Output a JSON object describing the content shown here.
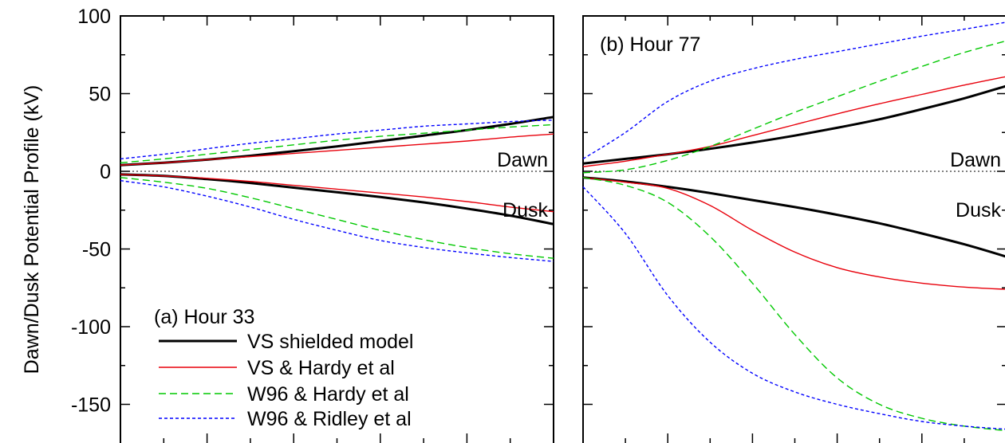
{
  "figure": {
    "ylabel": "Dawn/Dusk Potential Profile (kV)"
  },
  "legend": [
    {
      "label": "VS shielded model",
      "color": "#000000",
      "style": "solid-thick"
    },
    {
      "label": "VS & Hardy et al",
      "color": "#e8000b",
      "style": "solid"
    },
    {
      "label": "W96 & Hardy et al",
      "color": "#00c800",
      "style": "dashed"
    },
    {
      "label": "W96 & Ridley et al",
      "color": "#0000ff",
      "style": "dotted"
    }
  ],
  "chart_data": [
    {
      "type": "line",
      "title": "(a) Hour 33",
      "ylabel": "Dawn/Dusk Potential Profile (kV)",
      "ylim": [
        -165,
        100
      ],
      "xlim": [
        0,
        1
      ],
      "yticks": [
        100,
        50,
        0,
        -50,
        -100,
        -150
      ],
      "annotations": [
        "Dawn",
        "Dusk"
      ],
      "reference_line": {
        "y": 0,
        "style": "dotted"
      },
      "x": [
        0,
        0.1,
        0.2,
        0.3,
        0.4,
        0.5,
        0.6,
        0.7,
        0.8,
        0.9,
        1.0
      ],
      "series": [
        {
          "name": "VS shielded model",
          "group": "dawn",
          "values": [
            4,
            5.5,
            7.5,
            10,
            13,
            16,
            19.5,
            23,
            26.5,
            30.5,
            35
          ]
        },
        {
          "name": "VS & Hardy et al",
          "group": "dawn",
          "values": [
            4,
            5.5,
            7.5,
            9.5,
            11.5,
            13.5,
            15.5,
            17.5,
            19.5,
            22,
            24
          ]
        },
        {
          "name": "W96 & Hardy et al",
          "group": "dawn",
          "values": [
            5.5,
            8,
            11,
            14,
            17,
            20,
            22.5,
            24.5,
            26.5,
            28.5,
            30
          ]
        },
        {
          "name": "W96 & Ridley et al",
          "group": "dawn",
          "values": [
            8,
            11,
            14.5,
            18,
            21,
            24,
            26.5,
            29,
            30.5,
            32,
            33
          ]
        },
        {
          "name": "VS shielded model",
          "group": "dusk",
          "values": [
            -2,
            -3,
            -5,
            -7.5,
            -10.5,
            -13.5,
            -16.5,
            -20,
            -24,
            -28.5,
            -34
          ]
        },
        {
          "name": "VS & Hardy et al",
          "group": "dusk",
          "values": [
            -2,
            -3,
            -4.5,
            -6.5,
            -9,
            -11.5,
            -14,
            -16.5,
            -19.5,
            -23,
            -26
          ]
        },
        {
          "name": "W96 & Hardy et al",
          "group": "dusk",
          "values": [
            -4,
            -7,
            -11,
            -17,
            -24,
            -31,
            -38,
            -44,
            -49,
            -53,
            -56
          ]
        },
        {
          "name": "W96 & Ridley et al",
          "group": "dusk",
          "values": [
            -6,
            -10,
            -16,
            -23,
            -31,
            -38,
            -44.5,
            -49,
            -52.5,
            -55.5,
            -58
          ]
        }
      ]
    },
    {
      "type": "line",
      "title": "(b) Hour 77",
      "ylim": [
        -165,
        100
      ],
      "xlim": [
        0,
        1
      ],
      "annotations": [
        "Dawn",
        "Dusk"
      ],
      "reference_line": {
        "y": 0,
        "style": "dotted"
      },
      "x": [
        0,
        0.1,
        0.2,
        0.3,
        0.4,
        0.5,
        0.6,
        0.7,
        0.8,
        0.9,
        1.0
      ],
      "series": [
        {
          "name": "VS shielded model",
          "group": "dawn",
          "values": [
            5,
            8,
            11,
            14.5,
            18.5,
            23,
            28,
            33.5,
            40,
            47,
            55
          ]
        },
        {
          "name": "VS & Hardy et al",
          "group": "dawn",
          "values": [
            3,
            6.5,
            11,
            16,
            23,
            30,
            37,
            43.5,
            49.5,
            55.5,
            61
          ]
        },
        {
          "name": "W96 & Hardy et al",
          "group": "dawn",
          "values": [
            -1,
            1,
            7,
            16,
            27,
            38,
            48,
            58,
            67.5,
            76.5,
            84
          ]
        },
        {
          "name": "W96 & Ridley et al",
          "group": "dawn",
          "values": [
            8,
            25,
            45,
            58,
            66,
            72,
            77,
            82,
            87,
            91.5,
            96
          ]
        },
        {
          "name": "VS shielded model",
          "group": "dusk",
          "values": [
            -4,
            -6.5,
            -10,
            -14,
            -18.5,
            -23,
            -28,
            -33.5,
            -40,
            -47,
            -55
          ]
        },
        {
          "name": "VS & Hardy et al",
          "group": "dusk",
          "values": [
            -4,
            -7,
            -11,
            -22,
            -38,
            -52,
            -62,
            -68,
            -72,
            -74.5,
            -76
          ]
        },
        {
          "name": "W96 & Hardy et al",
          "group": "dusk",
          "values": [
            -4,
            -9,
            -20,
            -42,
            -72,
            -105,
            -133,
            -150,
            -159,
            -164,
            -167
          ]
        },
        {
          "name": "W96 & Ridley et al",
          "group": "dusk",
          "values": [
            -10,
            -40,
            -80,
            -110,
            -130,
            -142,
            -150,
            -156,
            -161,
            -164,
            -166
          ]
        }
      ]
    }
  ]
}
